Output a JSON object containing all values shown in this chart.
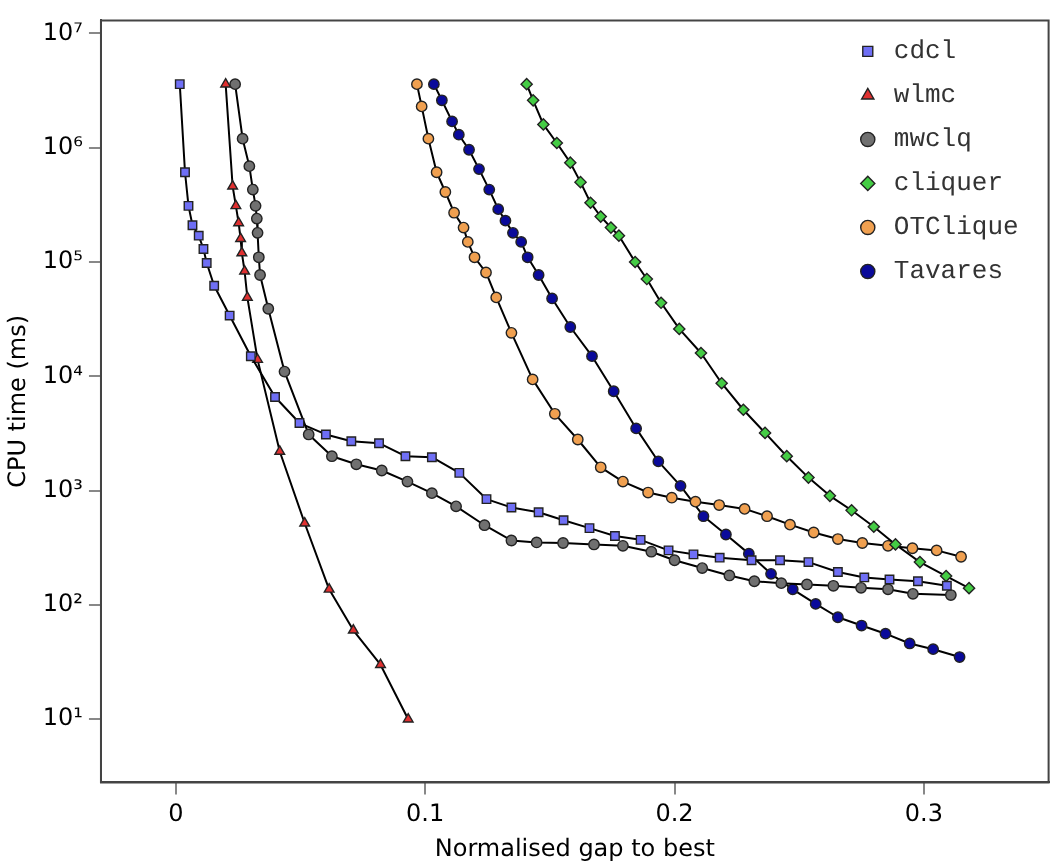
{
  "chart_data": {
    "type": "line",
    "xlabel": "Normalised gap to best",
    "ylabel": "CPU time (ms)",
    "log": "y",
    "grid": false,
    "legend": "top right",
    "xlim": [
      -0.03,
      0.35
    ],
    "xticks": [
      0,
      0.1,
      0.2,
      0.3
    ],
    "ylim": [
      2.8,
      13000000
    ],
    "yticks": [
      {
        "value": 10,
        "label": "10¹"
      },
      {
        "value": 100,
        "label": "10²"
      },
      {
        "value": 1000,
        "label": "10³"
      },
      {
        "value": 10000,
        "label": "10⁴"
      },
      {
        "value": 100000,
        "label": "10⁵"
      },
      {
        "value": 1000000,
        "label": "10⁶"
      },
      {
        "value": 10000000,
        "label": "10⁷"
      }
    ],
    "series": [
      {
        "name": "cdcl",
        "color": "#6f6ff5",
        "marker": "square",
        "x": [
          0.0016,
          0.0037,
          0.0051,
          0.0067,
          0.0092,
          0.0111,
          0.0124,
          0.0154,
          0.0216,
          0.0301,
          0.0398,
          0.0496,
          0.0602,
          0.0704,
          0.0815,
          0.0921,
          0.1027,
          0.1137,
          0.1246,
          0.1346,
          0.1455,
          0.1555,
          0.1659,
          0.1761,
          0.1864,
          0.1976,
          0.2076,
          0.2181,
          0.2309,
          0.2423,
          0.2537,
          0.2655,
          0.2761,
          0.2862,
          0.2976,
          0.3092
        ],
        "values": [
          3600000,
          610000,
          310000,
          210000,
          170000,
          130000,
          98000,
          62000,
          34000,
          15000,
          6600,
          3900,
          3100,
          2700,
          2600,
          2000,
          1960,
          1430,
          843,
          711,
          646,
          551,
          470,
          401,
          371,
          300,
          277,
          259,
          246,
          246,
          237,
          194,
          174,
          167,
          161,
          147
        ]
      },
      {
        "name": "wlmc",
        "color": "#e03030",
        "marker": "triangle",
        "x": [
          0.02,
          0.0228,
          0.0241,
          0.0252,
          0.026,
          0.0265,
          0.0276,
          0.0287,
          0.0328,
          0.0417,
          0.0517,
          0.0615,
          0.0712,
          0.0821,
          0.0932
        ],
        "values": [
          3600000,
          460000,
          310000,
          220000,
          160000,
          120000,
          83000,
          49000,
          14000,
          2200,
          518,
          137,
          60,
          30,
          10
        ]
      },
      {
        "name": "mwclq",
        "color": "#707070",
        "marker": "circle",
        "x": [
          0.0238,
          0.0268,
          0.0295,
          0.0309,
          0.032,
          0.0325,
          0.0328,
          0.0333,
          0.0338,
          0.0371,
          0.0436,
          0.0498,
          0.0533,
          0.0626,
          0.0724,
          0.0826,
          0.0929,
          0.1027,
          0.1124,
          0.1238,
          0.1346,
          0.1447,
          0.1553,
          0.1677,
          0.1793,
          0.1907,
          0.2,
          0.2111,
          0.222,
          0.232,
          0.2428,
          0.2531,
          0.2637,
          0.2748,
          0.2856,
          0.2956,
          0.3108
        ],
        "values": [
          3600000,
          1200000,
          690000,
          430000,
          310000,
          240000,
          180000,
          110000,
          77000,
          39000,
          11000,
          null,
          3100,
          2000,
          1700,
          1500,
          1200,
          950,
          728,
          498,
          366,
          352,
          348,
          338,
          329,
          292,
          246,
          210,
          181,
          161,
          155,
          151,
          147,
          141,
          137,
          125,
          122
        ]
      },
      {
        "name": "cliquer",
        "color": "#44cc44",
        "marker": "diamond",
        "x": [
          0.1407,
          0.1433,
          0.1474,
          0.1528,
          0.1582,
          0.1623,
          0.1663,
          0.1704,
          0.1745,
          0.1777,
          0.1842,
          0.1889,
          0.1946,
          0.2019,
          0.2106,
          0.2189,
          0.2276,
          0.2363,
          0.245,
          0.2537,
          0.2623,
          0.271,
          0.2799,
          0.2886,
          0.2984,
          0.3089,
          0.3181
        ],
        "values": [
          3600000,
          2600000,
          1600000,
          1100000,
          740000,
          500000,
          330000,
          250000,
          200000,
          170000,
          100000,
          71000,
          44000,
          26000,
          16000,
          8700,
          5100,
          3200,
          2000,
          1300,
          900,
          673,
          483,
          338,
          237,
          179,
          140
        ]
      },
      {
        "name": "OTClique",
        "color": "#f0a050",
        "marker": "circle",
        "x": [
          0.0967,
          0.0986,
          0.1013,
          0.1046,
          0.1081,
          0.1116,
          0.1154,
          0.1171,
          0.1198,
          0.1244,
          0.1285,
          0.1346,
          0.1431,
          0.152,
          0.1612,
          0.1704,
          0.1793,
          0.1894,
          0.1989,
          0.2084,
          0.2179,
          0.2281,
          0.2371,
          0.2463,
          0.2558,
          0.2655,
          0.2753,
          0.2856,
          0.2954,
          0.3051,
          0.3149
        ],
        "values": [
          3600000,
          2300000,
          1200000,
          610000,
          410000,
          270000,
          200000,
          150000,
          110000,
          81000,
          49000,
          24000,
          9400,
          4700,
          2800,
          1600,
          1200,
          962,
          867,
          800,
          748,
          692,
          597,
          504,
          430,
          377,
          348,
          329,
          313,
          300,
          264
        ]
      },
      {
        "name": "Tavares",
        "color": "#0a0a9a",
        "marker": "circle",
        "x": [
          0.1035,
          0.1067,
          0.1108,
          0.1135,
          0.1176,
          0.1216,
          0.1257,
          0.1293,
          0.1322,
          0.1352,
          0.1385,
          0.1411,
          0.1455,
          0.1509,
          0.1582,
          0.1669,
          0.1756,
          0.1846,
          0.1935,
          0.2024,
          0.2116,
          0.2206,
          0.2298,
          0.2387,
          0.2474,
          0.2566,
          0.2655,
          0.275,
          0.2846,
          0.2943,
          0.3037,
          0.3143
        ],
        "values": [
          3600000,
          2600000,
          1700000,
          1300000,
          960000,
          650000,
          430000,
          290000,
          230000,
          180000,
          150000,
          110000,
          77000,
          48000,
          27000,
          15000,
          7400,
          3500,
          1800,
          1100,
          597,
          413,
          281,
          187,
          137,
          102,
          78,
          66,
          56,
          46,
          41,
          35
        ]
      }
    ]
  }
}
